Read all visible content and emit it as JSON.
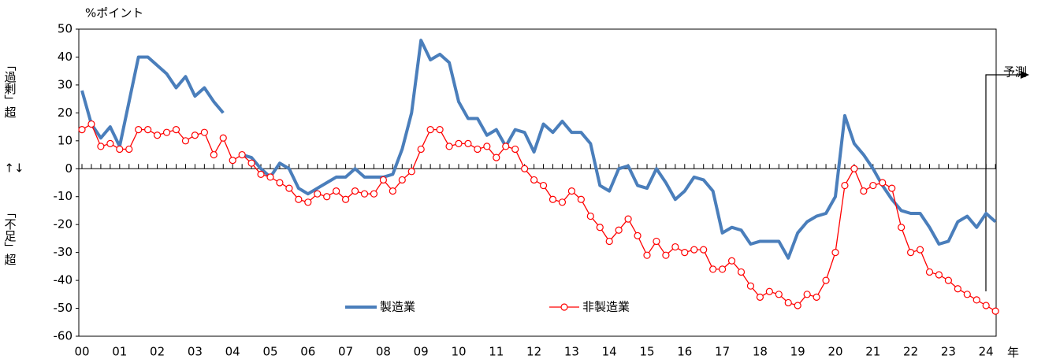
{
  "chart_data": {
    "type": "line",
    "y_unit": "%ポイント",
    "y_label_top": "「過剰」超",
    "y_label_bottom": "「不足」超",
    "x_label": "年",
    "forecast_label": "予測",
    "categories": [
      "00",
      null,
      null,
      null,
      "01",
      null,
      null,
      null,
      "02",
      null,
      null,
      null,
      "03",
      null,
      null,
      null,
      "04",
      null,
      null,
      null,
      "05",
      null,
      null,
      null,
      "06",
      null,
      null,
      null,
      "07",
      null,
      null,
      null,
      "08",
      null,
      null,
      null,
      "09",
      null,
      null,
      null,
      "10",
      null,
      null,
      null,
      "11",
      null,
      null,
      null,
      "12",
      null,
      null,
      null,
      "13",
      null,
      null,
      null,
      "14",
      null,
      null,
      null,
      "15",
      null,
      null,
      null,
      "16",
      null,
      null,
      null,
      "17",
      null,
      null,
      null,
      "18",
      null,
      null,
      null,
      "19",
      null,
      null,
      null,
      "20",
      null,
      null,
      null,
      "21",
      null,
      null,
      null,
      "22",
      null,
      null,
      null,
      "23",
      null,
      null,
      null,
      "24",
      null
    ],
    "series": [
      {
        "name": "製造業",
        "color": "#4a7ebb",
        "values": [
          28,
          16,
          11,
          15,
          8,
          24,
          40,
          40,
          37,
          34,
          29,
          33,
          26,
          29,
          24,
          20,
          null,
          5,
          4,
          0,
          -3,
          2,
          0,
          -7,
          -9,
          -7,
          -5,
          -3,
          -3,
          0,
          -3,
          -3,
          -3,
          -2,
          7,
          20,
          46,
          39,
          41,
          38,
          24,
          18,
          18,
          12,
          14,
          8,
          14,
          13,
          6,
          16,
          13,
          17,
          13,
          13,
          9,
          -6,
          -8,
          0,
          1,
          -6,
          -7,
          0,
          -5,
          -11,
          -8,
          -3,
          -4,
          -8,
          -23,
          -21,
          -22,
          -27,
          -26,
          -26,
          -26,
          -32,
          -23,
          -19,
          -17,
          -16,
          -10,
          19,
          9,
          5,
          0,
          -6,
          -11,
          -15,
          -16,
          -16,
          -21,
          -27,
          -26,
          -19,
          -17,
          -21,
          -16,
          -19
        ]
      },
      {
        "name": "非製造業",
        "color": "#ff0000",
        "values": [
          14,
          16,
          8,
          9,
          7,
          7,
          14,
          14,
          12,
          13,
          14,
          10,
          12,
          13,
          5,
          11,
          3,
          5,
          2,
          -2,
          -3,
          -5,
          -7,
          -11,
          -12,
          -9,
          -10,
          -8,
          -11,
          -8,
          -9,
          -9,
          -4,
          -8,
          -4,
          -1,
          7,
          14,
          14,
          8,
          9,
          9,
          7,
          8,
          4,
          8,
          7,
          0,
          -4,
          -6,
          -11,
          -12,
          -8,
          -11,
          -17,
          -21,
          -26,
          -22,
          -18,
          -24,
          -31,
          -26,
          -31,
          -28,
          -30,
          -29,
          -29,
          -36,
          -36,
          -33,
          -37,
          -42,
          -46,
          -44,
          -45,
          -48,
          -49,
          -45,
          -46,
          -40,
          -30,
          -6,
          0,
          -8,
          -6,
          -5,
          -7,
          -21,
          -30,
          -29,
          -37,
          -38,
          -40,
          -43,
          -45,
          -47,
          -49,
          -51
        ]
      }
    ],
    "ylim": [
      -60,
      50
    ],
    "yticks": [
      -60,
      -50,
      -40,
      -30,
      -20,
      -10,
      0,
      10,
      20,
      30,
      40,
      50
    ]
  }
}
